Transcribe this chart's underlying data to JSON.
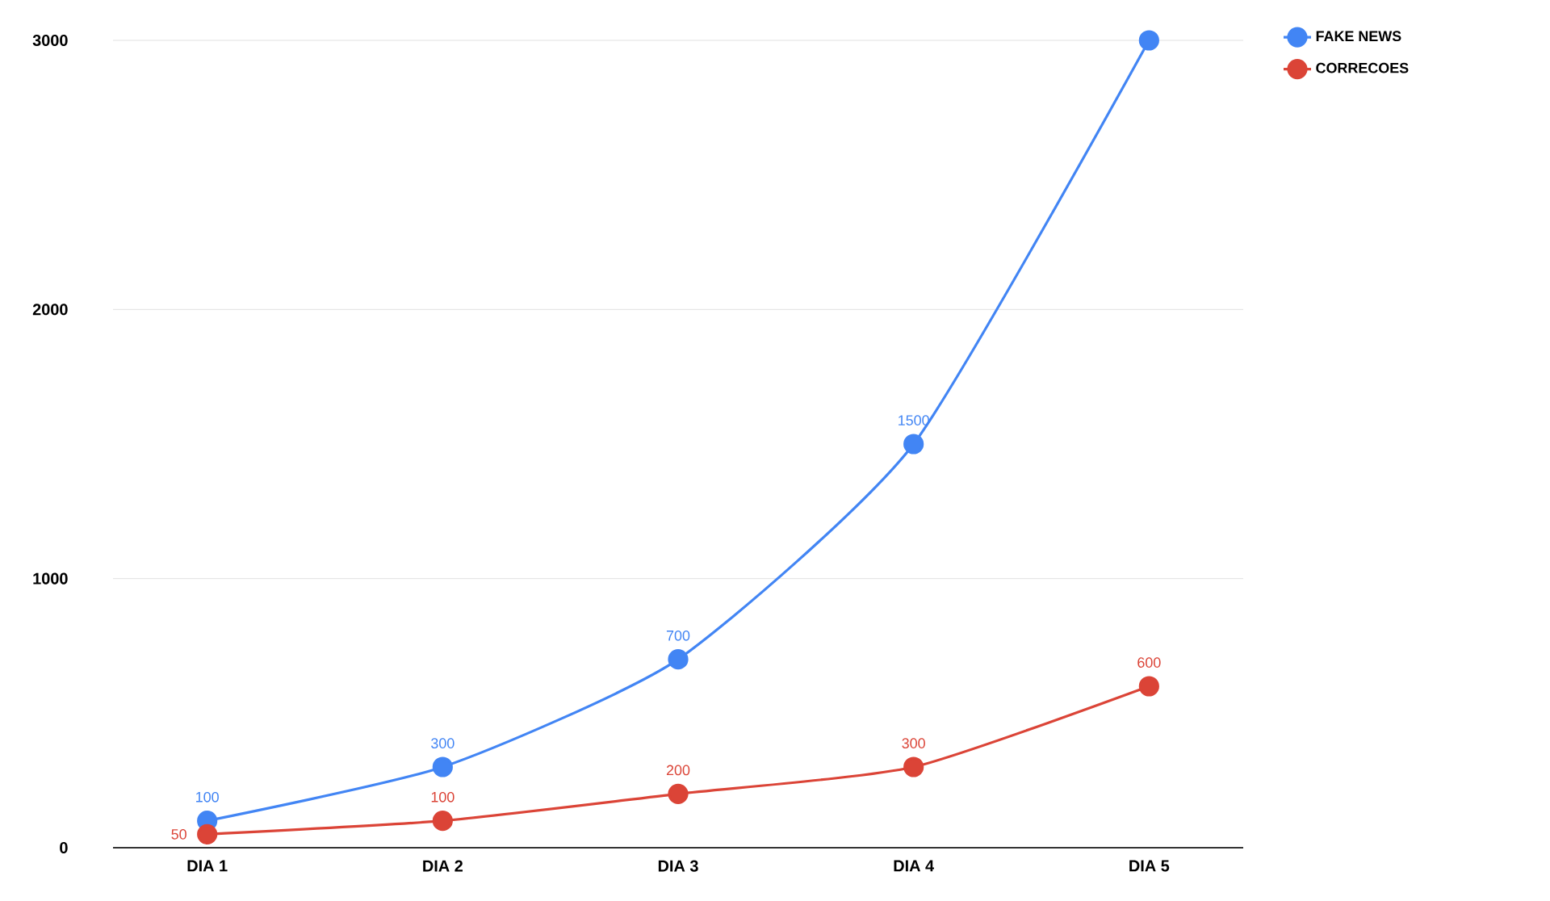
{
  "chart_data": {
    "type": "line",
    "categories": [
      "DIA 1",
      "DIA 2",
      "DIA 3",
      "DIA 4",
      "DIA 5"
    ],
    "series": [
      {
        "name": "FAKE NEWS",
        "color": "#4285f4",
        "values": [
          100,
          300,
          700,
          1500,
          3000
        ],
        "value_labels": [
          "100",
          "300",
          "700",
          "1500",
          null
        ]
      },
      {
        "name": "CORRECOES",
        "color": "#db4437",
        "values": [
          50,
          100,
          200,
          300,
          600
        ],
        "value_labels": [
          "50",
          "100",
          "200",
          "300",
          "600"
        ]
      }
    ],
    "ylim": [
      0,
      3000
    ],
    "yticks": [
      0,
      1000,
      2000,
      3000
    ],
    "grid": "y",
    "legend": "top right",
    "marker": "circle"
  }
}
